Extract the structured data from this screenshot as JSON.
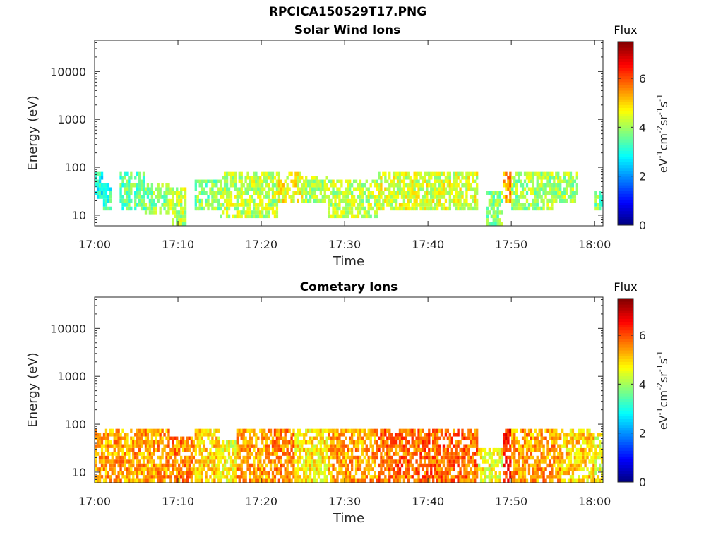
{
  "figure": {
    "title": "RPCICA150529T17.PNG"
  },
  "chart_data": [
    {
      "type": "heatmap",
      "title": "Solar Wind Ions",
      "xlabel": "Time",
      "ylabel": "Energy (eV)",
      "y_scale": "log",
      "xlim": [
        "17:00",
        "18:01"
      ],
      "ylim": [
        6,
        45000
      ],
      "x_ticks": [
        "17:00",
        "17:10",
        "17:20",
        "17:30",
        "17:40",
        "17:50",
        "18:00"
      ],
      "y_ticks": [
        "10",
        "100",
        "1000",
        "10000"
      ],
      "colorbar": {
        "title": "Flux",
        "label": "eV-1cm-2sr-1s-1",
        "label_parts": [
          {
            "text": "eV"
          },
          {
            "text": "-1",
            "sup": true
          },
          {
            "text": "cm"
          },
          {
            "text": "-2",
            "sup": true
          },
          {
            "text": "sr"
          },
          {
            "text": "-1",
            "sup": true
          },
          {
            "text": "s"
          },
          {
            "text": "-1",
            "sup": true
          }
        ],
        "range": [
          0,
          7.5
        ],
        "ticks": [
          "0",
          "2",
          "4",
          "6"
        ],
        "colormap": "jet"
      },
      "energy_range": [
        6,
        80
      ],
      "activity": [
        {
          "start": "17:00",
          "end": "17:01",
          "level": 3.0,
          "band": [
            25,
            80
          ]
        },
        {
          "start": "17:01",
          "end": "17:02",
          "level": 3.2,
          "band": [
            15,
            45
          ]
        },
        {
          "start": "17:03",
          "end": "17:06",
          "level": 3.5,
          "band": [
            15,
            70
          ]
        },
        {
          "start": "17:06",
          "end": "17:09",
          "level": 3.8,
          "band": [
            12,
            45
          ]
        },
        {
          "start": "17:09",
          "end": "17:11",
          "level": 4.2,
          "band": [
            7,
            35
          ]
        },
        {
          "start": "17:12",
          "end": "17:15",
          "level": 3.8,
          "band": [
            15,
            55
          ]
        },
        {
          "start": "17:15",
          "end": "17:22",
          "level": 4.2,
          "band": [
            10,
            70
          ]
        },
        {
          "start": "17:22",
          "end": "17:25",
          "level": 4.6,
          "band": [
            20,
            80
          ]
        },
        {
          "start": "17:25",
          "end": "17:28",
          "level": 4.0,
          "band": [
            20,
            65
          ]
        },
        {
          "start": "17:28",
          "end": "17:34",
          "level": 4.2,
          "band": [
            10,
            55
          ]
        },
        {
          "start": "17:34",
          "end": "17:41",
          "level": 4.4,
          "band": [
            15,
            80
          ]
        },
        {
          "start": "17:41",
          "end": "17:46",
          "level": 4.4,
          "band": [
            15,
            80
          ]
        },
        {
          "start": "17:47",
          "end": "17:49",
          "level": 3.8,
          "band": [
            7,
            30
          ]
        },
        {
          "start": "17:49",
          "end": "17:50",
          "level": 5.4,
          "band": [
            20,
            70
          ]
        },
        {
          "start": "17:50",
          "end": "17:55",
          "level": 4.0,
          "band": [
            15,
            80
          ]
        },
        {
          "start": "17:55",
          "end": "17:58",
          "level": 4.0,
          "band": [
            20,
            80
          ]
        },
        {
          "start": "18:00",
          "end": "18:01",
          "level": 3.6,
          "band": [
            15,
            30
          ]
        }
      ]
    },
    {
      "type": "heatmap",
      "title": "Cometary Ions",
      "xlabel": "Time",
      "ylabel": "Energy (eV)",
      "y_scale": "log",
      "xlim": [
        "17:00",
        "18:01"
      ],
      "ylim": [
        6,
        45000
      ],
      "x_ticks": [
        "17:00",
        "17:10",
        "17:20",
        "17:30",
        "17:40",
        "17:50",
        "18:00"
      ],
      "y_ticks": [
        "10",
        "100",
        "1000",
        "10000"
      ],
      "colorbar": {
        "title": "Flux",
        "label": "eV-1cm-2sr-1s-1",
        "label_parts": [
          {
            "text": "eV"
          },
          {
            "text": "-1",
            "sup": true
          },
          {
            "text": "cm"
          },
          {
            "text": "-2",
            "sup": true
          },
          {
            "text": "sr"
          },
          {
            "text": "-1",
            "sup": true
          },
          {
            "text": "s"
          },
          {
            "text": "-1",
            "sup": true
          }
        ],
        "range": [
          0,
          7.5
        ],
        "ticks": [
          "0",
          "2",
          "4",
          "6"
        ],
        "colormap": "jet"
      },
      "energy_range": [
        6,
        80
      ],
      "activity": [
        {
          "start": "17:00",
          "end": "17:09",
          "level": 5.4,
          "band": [
            6,
            80
          ]
        },
        {
          "start": "17:09",
          "end": "17:12",
          "level": 5.6,
          "band": [
            6,
            50
          ]
        },
        {
          "start": "17:12",
          "end": "17:15",
          "level": 5.0,
          "band": [
            6,
            70
          ]
        },
        {
          "start": "17:15",
          "end": "17:17",
          "level": 4.6,
          "band": [
            6,
            40
          ]
        },
        {
          "start": "17:17",
          "end": "17:21",
          "level": 5.4,
          "band": [
            6,
            80
          ]
        },
        {
          "start": "17:21",
          "end": "17:24",
          "level": 5.6,
          "band": [
            6,
            80
          ]
        },
        {
          "start": "17:24",
          "end": "17:28",
          "level": 4.8,
          "band": [
            6,
            80
          ]
        },
        {
          "start": "17:28",
          "end": "17:34",
          "level": 5.4,
          "band": [
            6,
            80
          ]
        },
        {
          "start": "17:34",
          "end": "17:46",
          "level": 5.8,
          "band": [
            6,
            80
          ]
        },
        {
          "start": "17:46",
          "end": "17:49",
          "level": 4.6,
          "band": [
            6,
            30
          ]
        },
        {
          "start": "17:49",
          "end": "17:50",
          "level": 6.4,
          "band": [
            6,
            80
          ]
        },
        {
          "start": "17:50",
          "end": "17:56",
          "level": 5.4,
          "band": [
            6,
            80
          ]
        },
        {
          "start": "17:56",
          "end": "18:00",
          "level": 5.0,
          "band": [
            6,
            80
          ]
        },
        {
          "start": "18:00",
          "end": "18:01",
          "level": 4.6,
          "band": [
            6,
            60
          ]
        }
      ]
    }
  ]
}
